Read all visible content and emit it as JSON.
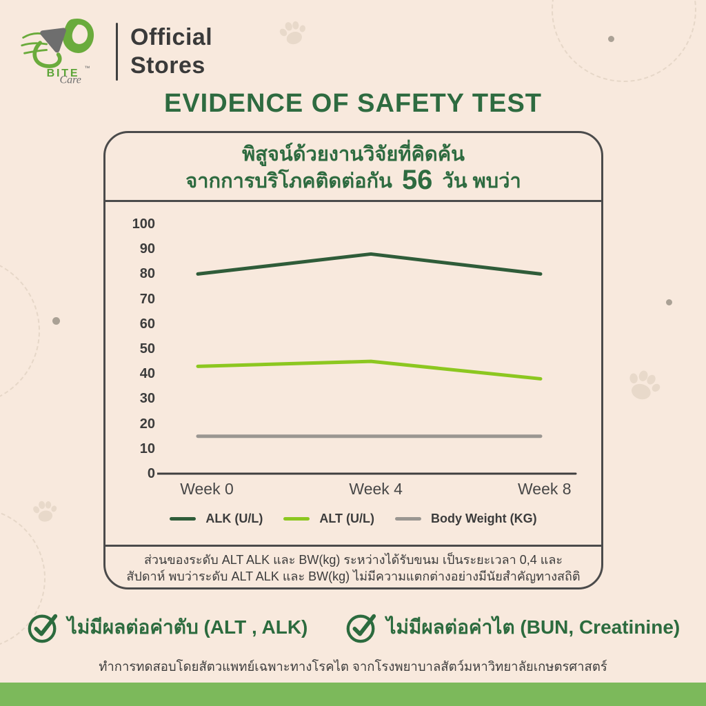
{
  "header": {
    "brand": {
      "wordmark": "BITE",
      "trademark": "™",
      "script": "Care"
    },
    "store_label_line1": "Official",
    "store_label_line2": "Stores"
  },
  "title": "EVIDENCE OF SAFETY TEST",
  "card": {
    "heading_line1": "พิสูจน์ด้วยงานวิจัยที่คิดค้น",
    "heading_line2_prefix": "จากการบริโภคติดต่อกัน",
    "heading_line2_number": "56",
    "heading_line2_suffix": "วัน พบว่า",
    "footnote_line1": "ส่วนของระดับ ALT ALK และ BW(kg) ระหว่างได้รับขนม เป็นระยะเวลา 0,4 และ",
    "footnote_line2": "สัปดาห์ พบว่าระดับ ALT ALK และ BW(kg) ไม่มีความแตกต่างอย่างมีนัยสำคัญทางสถิติ"
  },
  "chart_data": {
    "type": "line",
    "title": "",
    "xlabel": "",
    "ylabel": "",
    "categories": [
      "Week 0",
      "Week 4",
      "Week 8"
    ],
    "series": [
      {
        "name": "ALK (U/L)",
        "values": [
          80,
          88,
          80
        ],
        "color": "#2f5c39"
      },
      {
        "name": "ALT (U/L)",
        "values": [
          43,
          45,
          38
        ],
        "color": "#8cc720"
      },
      {
        "name": "Body Weight (KG)",
        "values": [
          15,
          15,
          15
        ],
        "color": "#9a9691"
      }
    ],
    "yticks": [
      100,
      90,
      80,
      70,
      60,
      50,
      40,
      30,
      20,
      10,
      0
    ],
    "ylim": [
      0,
      100
    ],
    "grid": false,
    "legend_position": "bottom"
  },
  "benefits": [
    {
      "label": "ไม่มีผลต่อค่าตับ (ALT , ALK)"
    },
    {
      "label": "ไม่มีผลต่อค่าไต (BUN, Creatinine)"
    }
  ],
  "source_note": "ทำการทดสอบโดยสัตวแพทย์เฉพาะทางโรคไต จากโรงพยาบาลสัตว์มหาวิทยาลัยเกษตรศาสตร์",
  "colors": {
    "background": "#f8e9dd",
    "accent_green": "#2e6b40",
    "bar_green": "#7cb95b",
    "decoration": "#e8d9ca",
    "text_dark": "#3f3f3f"
  }
}
